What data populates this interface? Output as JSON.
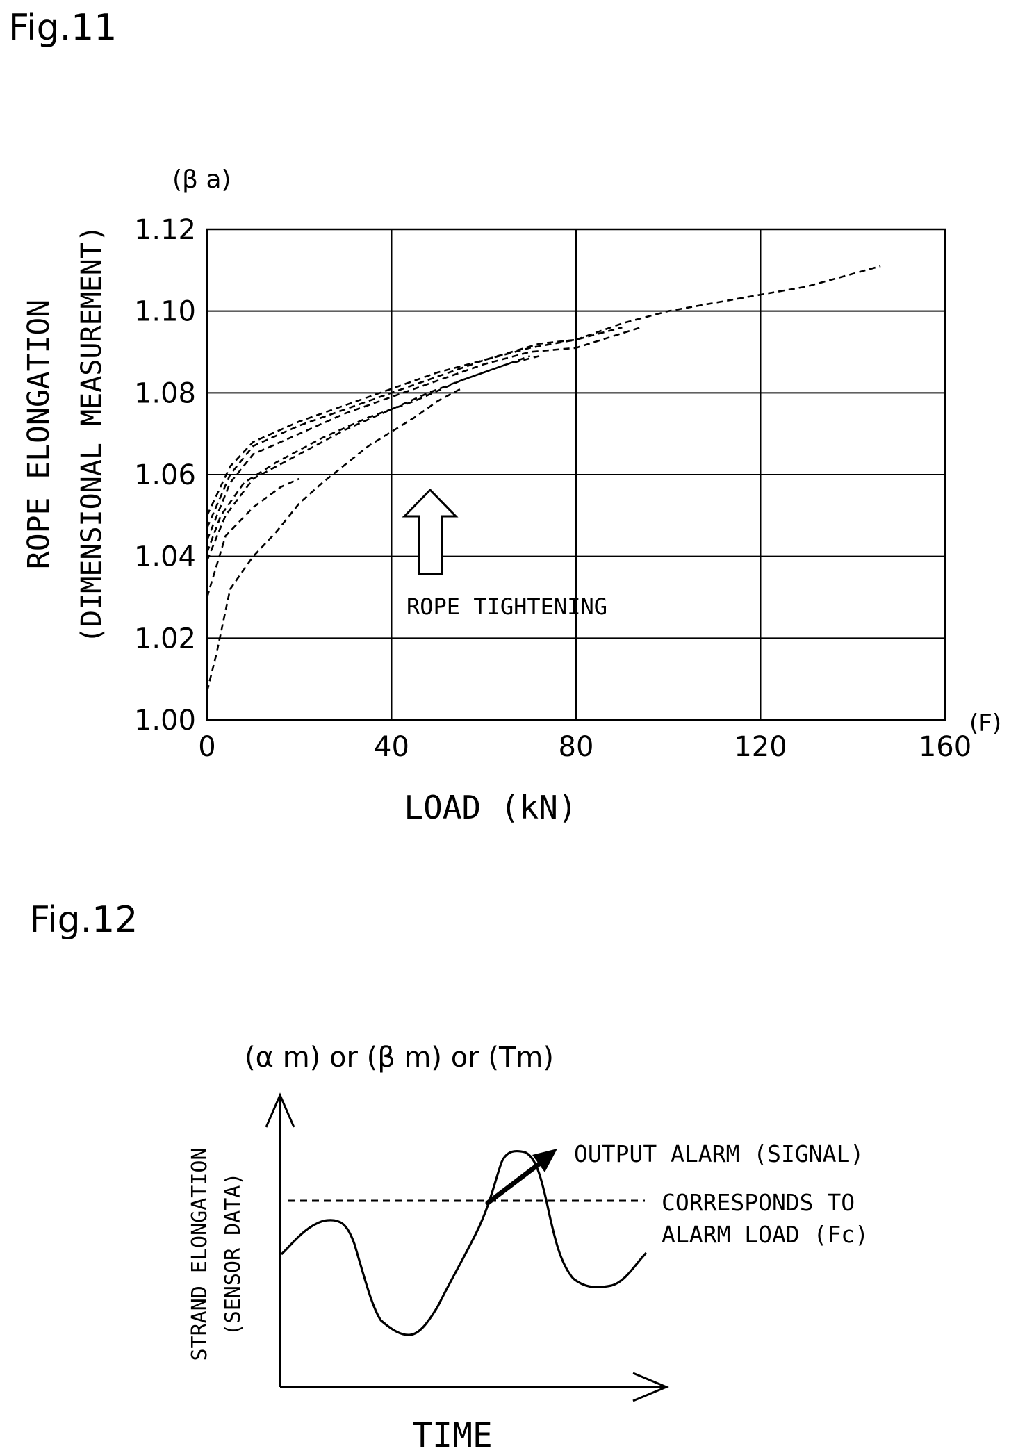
{
  "fig11": {
    "label": "Fig.11",
    "y_unit": "(β a)",
    "y_title": "ROPE ELONGATION",
    "y_subtitle": "(DIMENSIONAL MEASUREMENT)",
    "x_title": "LOAD (kN)",
    "x_unit": "(F)",
    "annotation": "ROPE TIGHTENING"
  },
  "fig12": {
    "label": "Fig.12",
    "y_unit": "(α m) or (β m) or (Tm)",
    "y_title": "STRAND ELONGATION",
    "y_subtitle": "(SENSOR DATA)",
    "x_title": "TIME",
    "alarm_label": "OUTPUT ALARM (SIGNAL)",
    "threshold_label_line1": "CORRESPONDS TO",
    "threshold_label_line2": "ALARM LOAD (Fc)"
  },
  "chart_data": [
    {
      "type": "line",
      "title": "",
      "xlabel": "LOAD (kN)",
      "ylabel": "ROPE ELONGATION (DIMENSIONAL MEASUREMENT)",
      "xlim": [
        0,
        160
      ],
      "ylim": [
        1.0,
        1.12
      ],
      "x_ticks": [
        "0",
        "40",
        "80",
        "120",
        "160"
      ],
      "y_ticks": [
        "1.00",
        "1.02",
        "1.04",
        "1.06",
        "1.08",
        "1.10",
        "1.12"
      ],
      "grid": true,
      "line_style": "dashed",
      "series": [
        {
          "values": [
            [
              0,
              1.05
            ],
            [
              5,
              1.062
            ],
            [
              10,
              1.068
            ],
            [
              20,
              1.073
            ],
            [
              30,
              1.077
            ],
            [
              40,
              1.081
            ],
            [
              50,
              1.085
            ],
            [
              60,
              1.088
            ],
            [
              70,
              1.091
            ],
            [
              80,
              1.093
            ],
            [
              90,
              1.097
            ],
            [
              100,
              1.1
            ],
            [
              110,
              1.102
            ],
            [
              120,
              1.104
            ],
            [
              130,
              1.106
            ],
            [
              146,
              1.111
            ]
          ]
        },
        {
          "values": [
            [
              0,
              1.047
            ],
            [
              5,
              1.06
            ],
            [
              10,
              1.067
            ],
            [
              20,
              1.072
            ],
            [
              30,
              1.076
            ],
            [
              40,
              1.08
            ],
            [
              50,
              1.084
            ],
            [
              60,
              1.088
            ],
            [
              72,
              1.092
            ],
            [
              80,
              1.093
            ],
            [
              90,
              1.096
            ]
          ]
        },
        {
          "values": [
            [
              0,
              1.044
            ],
            [
              5,
              1.058
            ],
            [
              10,
              1.065
            ],
            [
              20,
              1.07
            ],
            [
              30,
              1.075
            ],
            [
              40,
              1.079
            ],
            [
              50,
              1.083
            ],
            [
              60,
              1.087
            ],
            [
              70,
              1.09
            ],
            [
              80,
              1.091
            ],
            [
              94,
              1.096
            ]
          ]
        },
        {
          "values": [
            [
              0,
              1.041
            ],
            [
              3,
              1.05
            ],
            [
              8,
              1.058
            ],
            [
              15,
              1.063
            ],
            [
              25,
              1.069
            ],
            [
              35,
              1.074
            ],
            [
              45,
              1.078
            ],
            [
              55,
              1.083
            ],
            [
              65,
              1.087
            ],
            [
              72,
              1.089
            ]
          ]
        },
        {
          "values": [
            [
              0,
              1.039
            ],
            [
              4,
              1.05
            ],
            [
              10,
              1.059
            ],
            [
              20,
              1.065
            ],
            [
              30,
              1.071
            ],
            [
              40,
              1.076
            ],
            [
              48,
              1.08
            ],
            [
              55,
              1.083
            ],
            [
              65,
              1.087
            ],
            [
              70,
              1.089
            ]
          ]
        },
        {
          "values": [
            [
              0,
              1.03
            ],
            [
              4,
              1.045
            ],
            [
              10,
              1.052
            ],
            [
              16,
              1.057
            ],
            [
              20,
              1.059
            ]
          ]
        },
        {
          "values": [
            [
              0,
              1.007
            ],
            [
              2,
              1.016
            ],
            [
              5,
              1.032
            ],
            [
              10,
              1.04
            ],
            [
              15,
              1.046
            ],
            [
              20,
              1.053
            ],
            [
              25,
              1.058
            ],
            [
              35,
              1.067
            ],
            [
              45,
              1.074
            ],
            [
              50,
              1.078
            ],
            [
              55,
              1.081
            ]
          ]
        }
      ]
    }
  ]
}
